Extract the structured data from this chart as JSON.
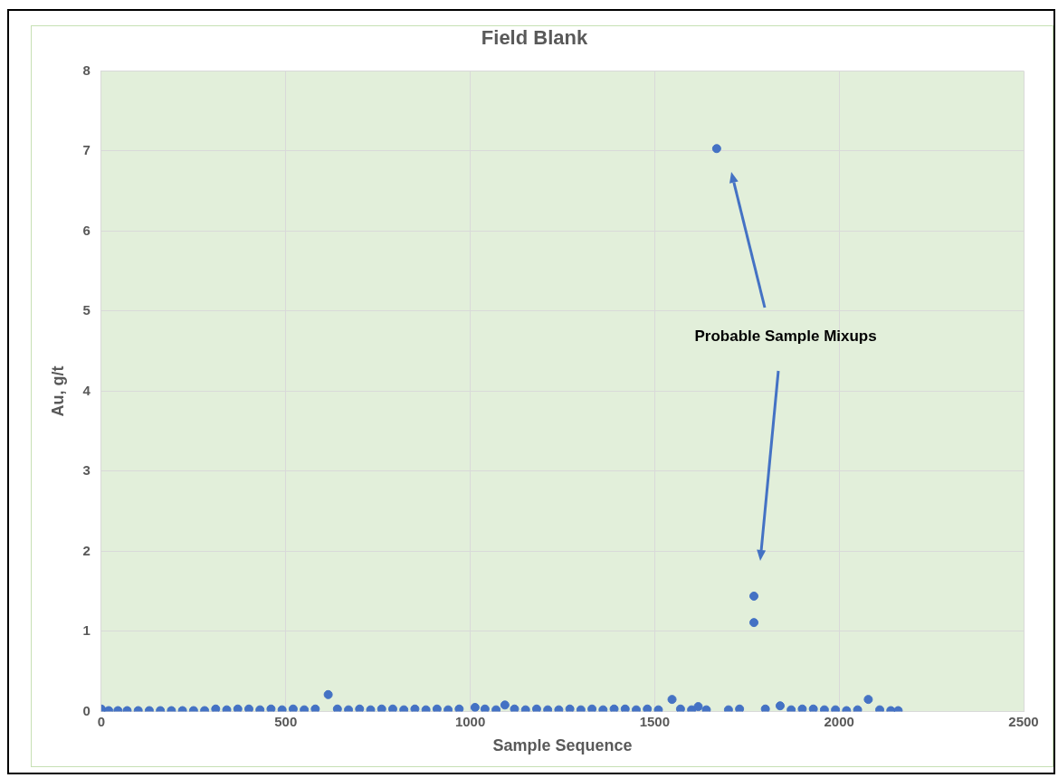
{
  "chart_data": {
    "type": "scatter",
    "title": "Field Blank",
    "xlabel": "Sample Sequence",
    "ylabel": "Au, g/t",
    "annotations": [
      "Probable Sample Mixups"
    ],
    "xlim": [
      0,
      2500
    ],
    "xticks": [
      0,
      500,
      1000,
      1500,
      2000,
      2500
    ],
    "ylim": [
      0,
      8
    ],
    "yticks": [
      0,
      1,
      2,
      3,
      4,
      5,
      6,
      7,
      8
    ],
    "grid": true,
    "legend": false,
    "marker": "circle",
    "series": [
      {
        "color": "#4472c4",
        "x": [
          0,
          20,
          45,
          70,
          100,
          130,
          160,
          190,
          220,
          250,
          280,
          310,
          340,
          370,
          400,
          430,
          460,
          490,
          520,
          550,
          580,
          615,
          640,
          670,
          700,
          730,
          760,
          790,
          820,
          850,
          880,
          910,
          940,
          970,
          1013,
          1040,
          1070,
          1094,
          1120,
          1150,
          1180,
          1210,
          1240,
          1270,
          1300,
          1330,
          1360,
          1390,
          1420,
          1450,
          1480,
          1510,
          1547,
          1570,
          1600,
          1618,
          1640,
          1668,
          1700,
          1730,
          1769,
          1769,
          1800,
          1840,
          1870,
          1900,
          1930,
          1960,
          1990,
          2020,
          2050,
          2079,
          2110,
          2140,
          2160
        ],
        "values": [
          0.03,
          0.01,
          0.01,
          0.01,
          0.01,
          0.01,
          0.01,
          0.01,
          0.01,
          0.01,
          0.01,
          0.03,
          0.02,
          0.03,
          0.03,
          0.02,
          0.03,
          0.02,
          0.03,
          0.02,
          0.03,
          0.21,
          0.03,
          0.02,
          0.03,
          0.02,
          0.03,
          0.03,
          0.02,
          0.03,
          0.02,
          0.03,
          0.02,
          0.03,
          0.05,
          0.03,
          0.02,
          0.08,
          0.03,
          0.02,
          0.03,
          0.02,
          0.02,
          0.03,
          0.02,
          0.03,
          0.02,
          0.03,
          0.03,
          0.02,
          0.03,
          0.02,
          0.15,
          0.03,
          0.02,
          0.06,
          0.02,
          7.03,
          0.02,
          0.03,
          1.44,
          1.11,
          0.03,
          0.07,
          0.02,
          0.03,
          0.03,
          0.02,
          0.02,
          0.01,
          0.02,
          0.15,
          0.02,
          0.01,
          0.01
        ]
      }
    ]
  }
}
